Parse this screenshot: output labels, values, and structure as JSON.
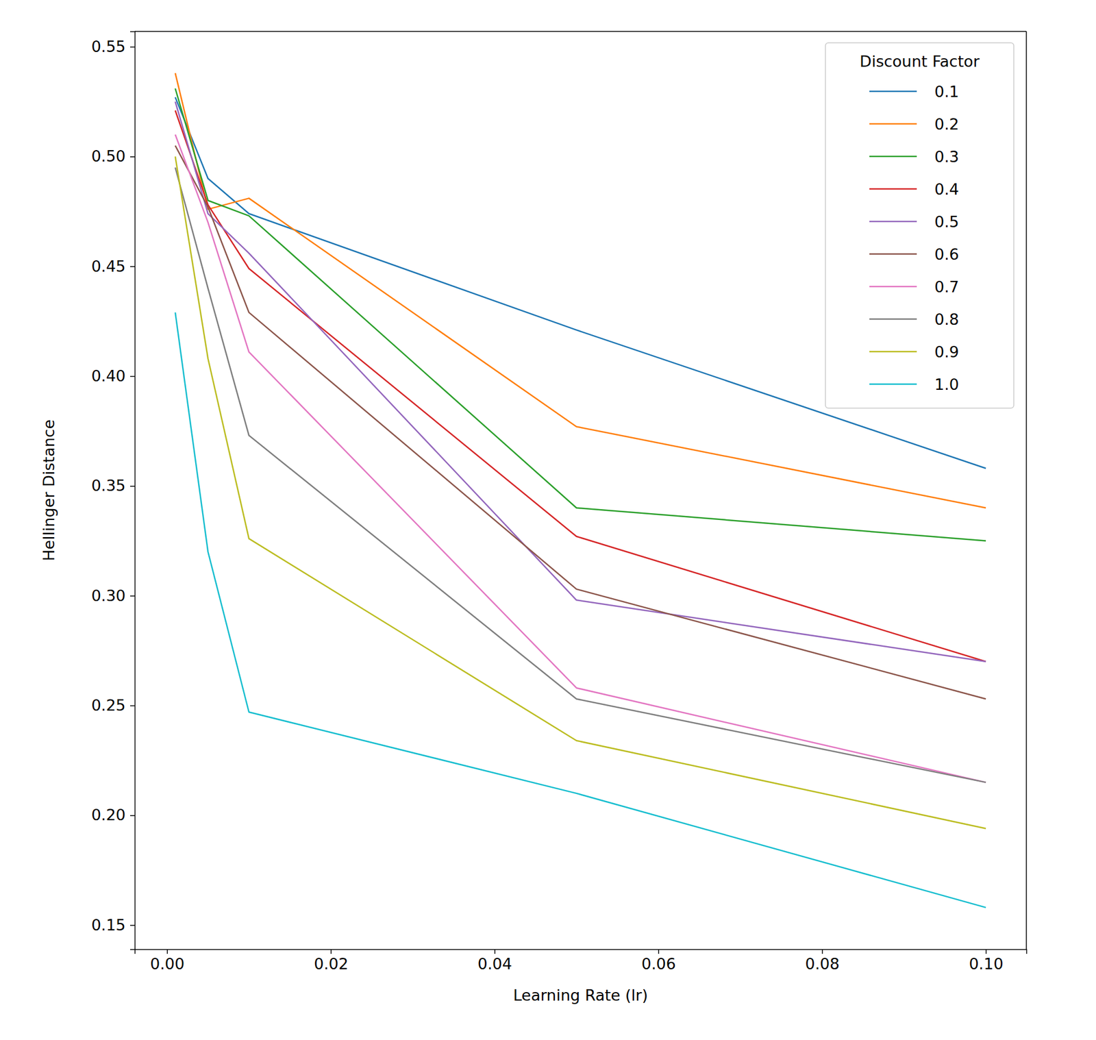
{
  "chart_data": {
    "type": "line",
    "x_label": "Learning Rate (lr)",
    "y_label": "Hellinger Distance",
    "legend_title": "Discount Factor",
    "legend": "upper right",
    "x": [
      0.001,
      0.005,
      0.01,
      0.05,
      0.1
    ],
    "xlim": [
      -0.00395,
      0.10495
    ],
    "xticks": [
      {
        "value": 0,
        "label": "0.00"
      },
      {
        "value": 0.02,
        "label": "0.02"
      },
      {
        "value": 0.04,
        "label": "0.04"
      },
      {
        "value": 0.06,
        "label": "0.06"
      },
      {
        "value": 0.08,
        "label": "0.08"
      },
      {
        "value": 0.1,
        "label": "0.10"
      }
    ],
    "ylim": [
      0.139,
      0.557
    ],
    "yticks": [
      0.15,
      {
        "value": 0.2,
        "label": "0.20"
      },
      0.25,
      {
        "value": 0.3,
        "label": "0.30"
      },
      0.35,
      {
        "value": 0.4,
        "label": "0.40"
      },
      0.45,
      {
        "value": 0.5,
        "label": "0.50"
      },
      0.55
    ],
    "series": [
      {
        "name": "0.1",
        "color": "#1f77b4",
        "values": [
          0.527,
          0.49,
          0.474,
          0.421,
          0.358
        ]
      },
      {
        "name": "0.2",
        "color": "#ff7f0e",
        "values": [
          0.538,
          0.476,
          0.481,
          0.377,
          0.34
        ]
      },
      {
        "name": "0.3",
        "color": "#2ca02c",
        "values": [
          0.531,
          0.48,
          0.473,
          0.34,
          0.325
        ]
      },
      {
        "name": "0.4",
        "color": "#d62728",
        "values": [
          0.521,
          0.478,
          0.449,
          0.327,
          0.27
        ]
      },
      {
        "name": "0.5",
        "color": "#9467bd",
        "values": [
          0.525,
          0.474,
          0.456,
          0.298,
          0.27
        ]
      },
      {
        "name": "0.6",
        "color": "#8c564b",
        "values": [
          0.505,
          0.477,
          0.429,
          0.303,
          0.253
        ]
      },
      {
        "name": "0.7",
        "color": "#e377c2",
        "values": [
          0.51,
          0.47,
          0.411,
          0.258,
          0.215
        ]
      },
      {
        "name": "0.8",
        "color": "#7f7f7f",
        "values": [
          0.495,
          0.44,
          0.373,
          0.253,
          0.215
        ]
      },
      {
        "name": "0.9",
        "color": "#bcbd22",
        "values": [
          0.5,
          0.408,
          0.326,
          0.234,
          0.194
        ]
      },
      {
        "name": "1.0",
        "color": "#17becf",
        "values": [
          0.429,
          0.32,
          0.247,
          0.21,
          0.158
        ]
      }
    ]
  }
}
